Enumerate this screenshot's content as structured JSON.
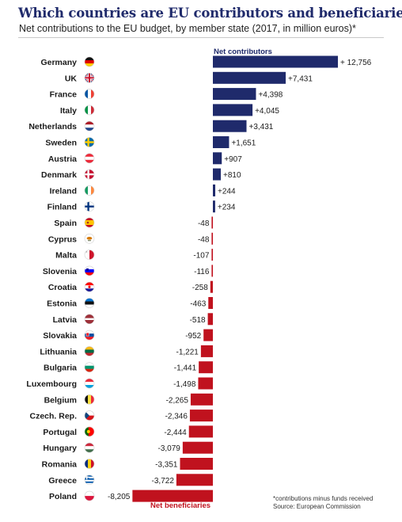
{
  "header": {
    "title": "Which countries are EU contributors and beneficiaries",
    "subtitle": "Net contributions to the EU budget, by member state (2017, in million euros)*"
  },
  "footnote": {
    "line1": "*contributions minus funds received",
    "line2": "Source: European Commission"
  },
  "colors": {
    "contributor": "#1f2a6b",
    "beneficiary": "#c0121e",
    "title": "#1f2a6b"
  },
  "chart_data": {
    "type": "bar",
    "orientation": "horizontal",
    "title": "Which countries are EU contributors and beneficiaries",
    "subtitle": "Net contributions to the EU budget, by member state (2017, in million euros)*",
    "positive_label": "Net contributors",
    "negative_label": "Net beneficiaries",
    "categories": [
      "Germany",
      "UK",
      "France",
      "Italy",
      "Netherlands",
      "Sweden",
      "Austria",
      "Denmark",
      "Ireland",
      "Finland",
      "Spain",
      "Cyprus",
      "Malta",
      "Slovenia",
      "Croatia",
      "Estonia",
      "Latvia",
      "Slovakia",
      "Lithuania",
      "Bulgaria",
      "Luxembourg",
      "Belgium",
      "Czech. Rep.",
      "Portugal",
      "Hungary",
      "Romania",
      "Greece",
      "Poland"
    ],
    "values": [
      12756,
      7431,
      4398,
      4045,
      3431,
      1651,
      907,
      810,
      244,
      234,
      -48,
      -48,
      -107,
      -116,
      -258,
      -463,
      -518,
      -952,
      -1221,
      -1441,
      -1498,
      -2265,
      -2346,
      -2444,
      -3079,
      -3351,
      -3722,
      -8205
    ],
    "value_labels": [
      "+ 12,756",
      "+7,431",
      "+4,398",
      "+4,045",
      "+3,431",
      "+1,651",
      "+907",
      "+810",
      "+244",
      "+234",
      "-48",
      "-48",
      "-107",
      "-116",
      "-258",
      "-463",
      "-518",
      "-952",
      "-1,221",
      "-1,441",
      "-1,498",
      "-2,265",
      "-2,346",
      "-2,444",
      "-3,079",
      "-3,351",
      "-3,722",
      "-8,205"
    ],
    "flags": [
      "germany-flag",
      "uk-flag",
      "france-flag",
      "italy-flag",
      "netherlands-flag",
      "sweden-flag",
      "austria-flag",
      "denmark-flag",
      "ireland-flag",
      "finland-flag",
      "spain-flag",
      "cyprus-flag",
      "malta-flag",
      "slovenia-flag",
      "croatia-flag",
      "estonia-flag",
      "latvia-flag",
      "slovakia-flag",
      "lithuania-flag",
      "bulgaria-flag",
      "luxembourg-flag",
      "belgium-flag",
      "czech-republic-flag",
      "portugal-flag",
      "hungary-flag",
      "romania-flag",
      "greece-flag",
      "poland-flag"
    ],
    "grid": false,
    "legend": "none"
  }
}
